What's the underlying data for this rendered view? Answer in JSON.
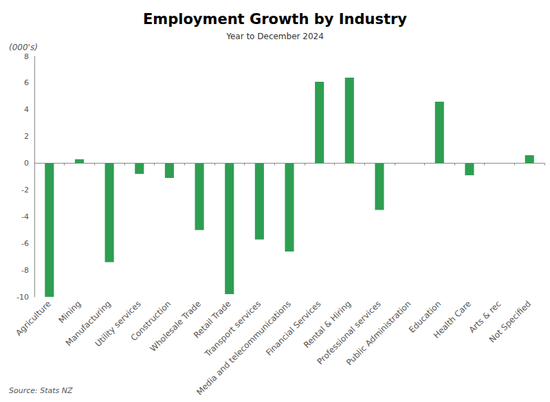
{
  "chart_data": {
    "type": "bar",
    "title": "Employment Growth by Industry",
    "subtitle": "Year to December 2024",
    "ylabel": "(000's)",
    "source": "Source: Stats NZ",
    "categories": [
      "Agriculture",
      "Mining",
      "Manufacturing",
      "Utility services",
      "Construction",
      "Wholesale Trade",
      "Retail Trade",
      "Transport services",
      "Media and telecommunications",
      "Financial Services",
      "Rental & Hiring",
      "Professional services",
      "Public Administration",
      "Education",
      "Health Care",
      "Arts & rec",
      "Not Specified"
    ],
    "values": [
      -10.0,
      0.3,
      -7.4,
      -0.8,
      -1.1,
      -5.0,
      -9.8,
      -5.7,
      -6.6,
      6.1,
      6.4,
      -3.5,
      0,
      4.6,
      -0.9,
      0,
      0.6
    ],
    "color": "#2e9e52",
    "ylim": [
      -10,
      8
    ],
    "yticks": [
      -10,
      -8,
      -6,
      -4,
      -2,
      0,
      2,
      4,
      6,
      8
    ],
    "grid": false
  }
}
